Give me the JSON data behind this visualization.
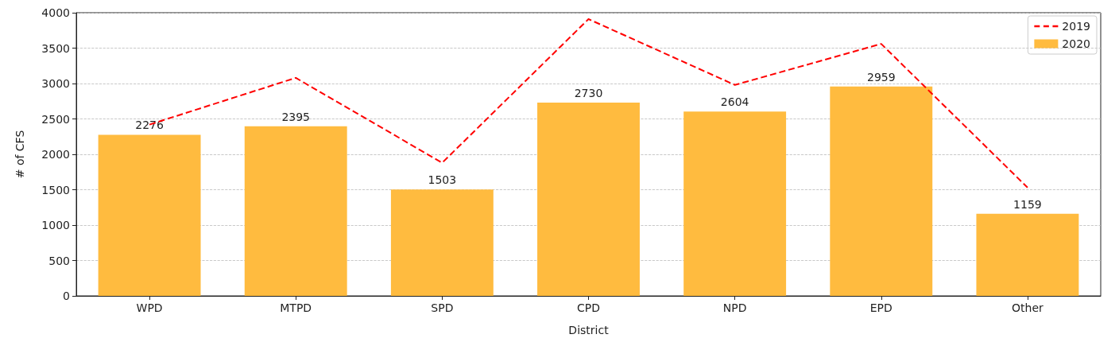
{
  "chart_data": {
    "type": "bar",
    "xlabel": "District",
    "ylabel": "# of CFS",
    "categories": [
      "WPD",
      "MTPD",
      "SPD",
      "CPD",
      "NPD",
      "EPD",
      "Other"
    ],
    "series": [
      {
        "name": "2019",
        "type": "line",
        "color": "#ff0000",
        "line_style": "dashed",
        "marker": "none",
        "values": [
          2420,
          3080,
          1880,
          3910,
          2980,
          3560,
          1530
        ]
      },
      {
        "name": "2020",
        "color": "#ffbb3f",
        "data_labels": true,
        "values": [
          2276,
          2395,
          1503,
          2730,
          2604,
          2959,
          1159
        ]
      }
    ],
    "ylim": [
      0,
      4000
    ],
    "yticks": [
      0,
      500,
      1000,
      1500,
      2000,
      2500,
      3000,
      3500,
      4000
    ],
    "grid": "y",
    "legend": "top right"
  }
}
